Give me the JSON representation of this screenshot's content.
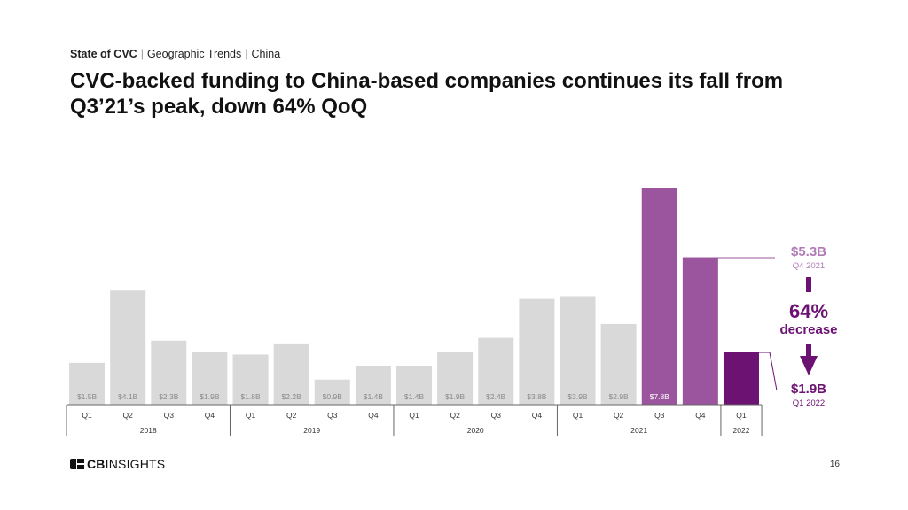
{
  "breadcrumb": {
    "part1": "State of CVC",
    "part2": "Geographic Trends",
    "part3": "China"
  },
  "title": "CVC-backed funding to China-based companies continues its fall from Q3’21’s peak, down 64% QoQ",
  "chart_data": {
    "type": "bar",
    "categories": [
      "Q1",
      "Q2",
      "Q3",
      "Q4",
      "Q1",
      "Q2",
      "Q3",
      "Q4",
      "Q1",
      "Q2",
      "Q3",
      "Q4",
      "Q1",
      "Q2",
      "Q3",
      "Q4",
      "Q1"
    ],
    "years": [
      {
        "label": "2018",
        "count": 4
      },
      {
        "label": "2019",
        "count": 4
      },
      {
        "label": "2020",
        "count": 4
      },
      {
        "label": "2021",
        "count": 4
      },
      {
        "label": "2022",
        "count": 1
      }
    ],
    "values": [
      1.5,
      4.1,
      2.3,
      1.9,
      1.8,
      2.2,
      0.9,
      1.4,
      1.4,
      1.9,
      2.4,
      3.8,
      3.9,
      2.9,
      7.8,
      5.3,
      1.9
    ],
    "value_labels": [
      "$1.5B",
      "$4.1B",
      "$2.3B",
      "$1.9B",
      "$1.8B",
      "$2.2B",
      "$0.9B",
      "$1.4B",
      "$1.4B",
      "$1.9B",
      "$2.4B",
      "$3.8B",
      "$3.9B",
      "$2.9B",
      "$7.8B",
      "",
      ""
    ],
    "colors": [
      "#d9d9d9",
      "#d9d9d9",
      "#d9d9d9",
      "#d9d9d9",
      "#d9d9d9",
      "#d9d9d9",
      "#d9d9d9",
      "#d9d9d9",
      "#d9d9d9",
      "#d9d9d9",
      "#d9d9d9",
      "#d9d9d9",
      "#d9d9d9",
      "#d9d9d9",
      "#9b549e",
      "#9b549e",
      "#6c1273"
    ],
    "ylim": [
      0,
      7.8
    ],
    "grid": false,
    "title": "",
    "xlabel": "",
    "ylabel": "",
    "callout": {
      "top_value": "$5.3B",
      "top_period": "Q4 2021",
      "pct": "64%",
      "pct_label": "decrease",
      "bottom_value": "$1.9B",
      "bottom_period": "Q1 2022",
      "top_color": "#b27bb6",
      "accent_color": "#6c1273"
    }
  },
  "footer": {
    "logo_bold": "CB",
    "logo_rest": "INSIGHTS",
    "page_number": "16"
  }
}
